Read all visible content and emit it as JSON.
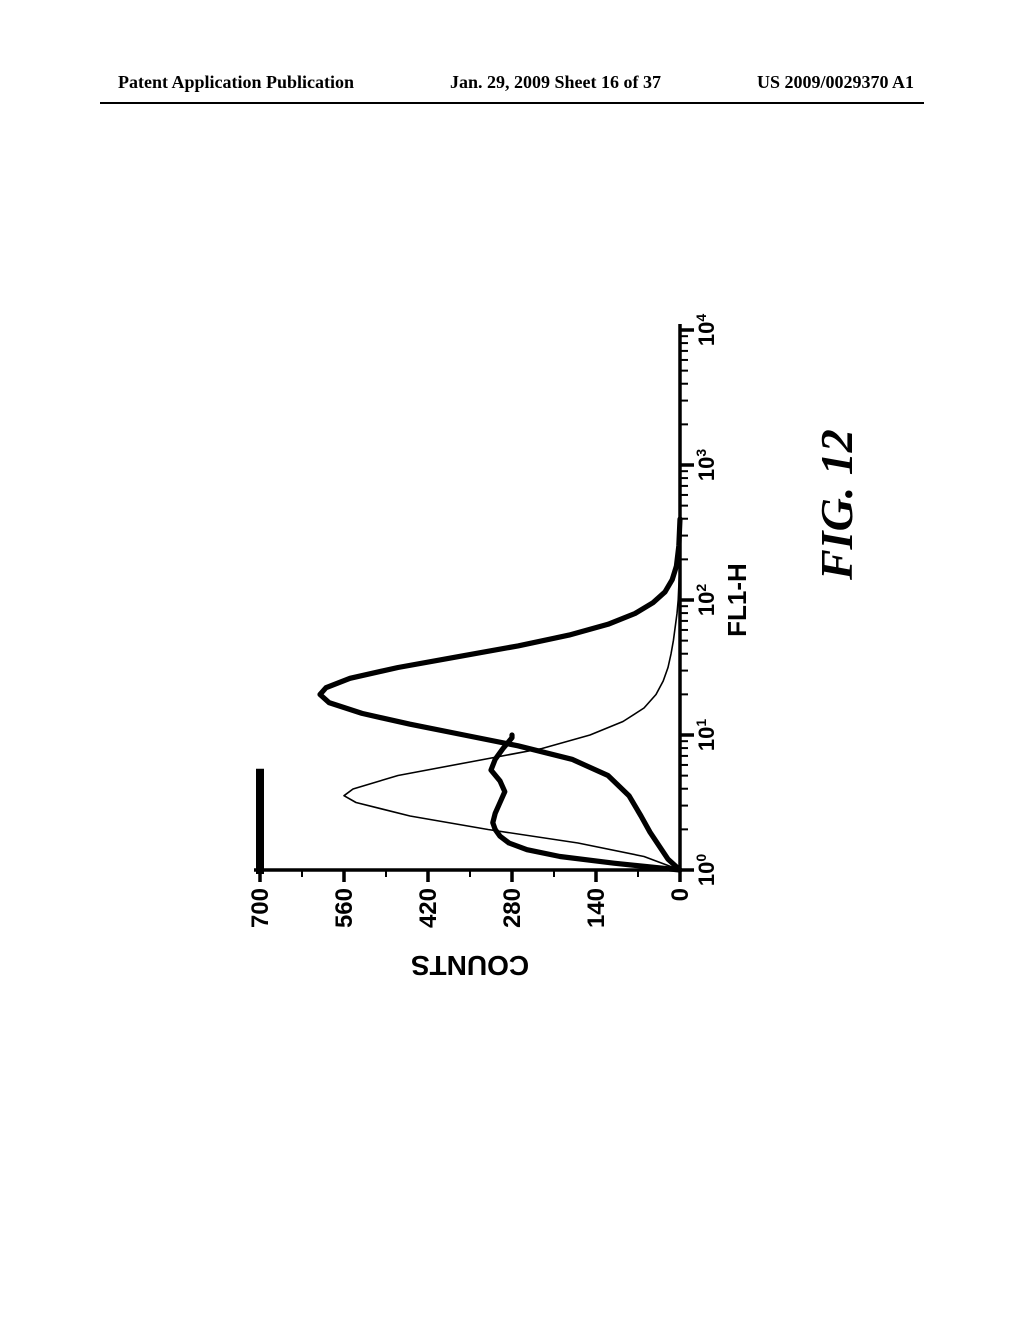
{
  "header": {
    "left": "Patent Application Publication",
    "center": "Jan. 29, 2009  Sheet 16 of 37",
    "right": "US 2009/0029370 A1"
  },
  "figure": {
    "label": "FIG.  12",
    "chart": {
      "type": "histogram-overlay",
      "orientation": "rotated-minus-90deg",
      "x_axis": {
        "label": "FL1-H",
        "scale": "log",
        "ticks": [
          "10^0",
          "10^1",
          "10^2",
          "10^3",
          "10^4"
        ],
        "label_fontsize": 26,
        "label_fontweight": "bold",
        "tick_fontsize": 22
      },
      "y_axis": {
        "label": "COUNTS",
        "scale": "linear",
        "ticks": [
          0,
          140,
          280,
          420,
          560,
          700
        ],
        "ylim": [
          0,
          700
        ],
        "label_fontsize": 28,
        "label_fontweight": "bold",
        "tick_fontsize": 24
      },
      "series": [
        {
          "name": "thin-curve",
          "stroke": "#000000",
          "stroke_width": 1.6,
          "approx_peak_x_decade": 0.55,
          "approx_peak_y": 560,
          "points": [
            [
              0.0,
              0
            ],
            [
              0.1,
              60
            ],
            [
              0.2,
              170
            ],
            [
              0.3,
              320
            ],
            [
              0.4,
              450
            ],
            [
              0.5,
              540
            ],
            [
              0.55,
              560
            ],
            [
              0.6,
              545
            ],
            [
              0.7,
              470
            ],
            [
              0.8,
              350
            ],
            [
              0.9,
              230
            ],
            [
              1.0,
              150
            ],
            [
              1.1,
              95
            ],
            [
              1.2,
              60
            ],
            [
              1.3,
              40
            ],
            [
              1.4,
              28
            ],
            [
              1.5,
              20
            ],
            [
              1.6,
              15
            ],
            [
              1.7,
              11
            ],
            [
              1.8,
              8
            ],
            [
              1.9,
              5
            ],
            [
              2.0,
              3
            ],
            [
              2.3,
              0
            ]
          ]
        },
        {
          "name": "thick-curve-left-hump-plus-plateau",
          "stroke": "#000000",
          "stroke_width": 5.2,
          "points": [
            [
              0.0,
              0
            ],
            [
              0.05,
              110
            ],
            [
              0.1,
              200
            ],
            [
              0.15,
              255
            ],
            [
              0.2,
              285
            ],
            [
              0.25,
              300
            ],
            [
              0.3,
              308
            ],
            [
              0.35,
              312
            ],
            [
              0.42,
              308
            ],
            [
              0.5,
              300
            ],
            [
              0.58,
              292
            ],
            [
              0.66,
              300
            ],
            [
              0.74,
              315
            ],
            [
              0.82,
              308
            ],
            [
              0.9,
              295
            ],
            [
              0.98,
              280
            ],
            [
              1.0,
              280
            ]
          ]
        },
        {
          "name": "thick-curve-main-peak",
          "stroke": "#000000",
          "stroke_width": 5.2,
          "approx_peak_x_decade": 1.3,
          "approx_peak_y": 600,
          "points": [
            [
              0.0,
              0
            ],
            [
              0.08,
              20
            ],
            [
              0.18,
              35
            ],
            [
              0.28,
              50
            ],
            [
              0.4,
              65
            ],
            [
              0.55,
              85
            ],
            [
              0.7,
              120
            ],
            [
              0.82,
              180
            ],
            [
              0.92,
              270
            ],
            [
              1.0,
              360
            ],
            [
              1.08,
              450
            ],
            [
              1.16,
              530
            ],
            [
              1.24,
              585
            ],
            [
              1.3,
              600
            ],
            [
              1.35,
              590
            ],
            [
              1.42,
              550
            ],
            [
              1.5,
              470
            ],
            [
              1.58,
              370
            ],
            [
              1.66,
              270
            ],
            [
              1.74,
              185
            ],
            [
              1.82,
              120
            ],
            [
              1.9,
              75
            ],
            [
              1.98,
              45
            ],
            [
              2.06,
              25
            ],
            [
              2.15,
              13
            ],
            [
              2.25,
              6
            ],
            [
              2.4,
              2
            ],
            [
              2.6,
              0
            ]
          ]
        }
      ],
      "plot_background": "#ffffff",
      "axis_color": "#000000",
      "axis_stroke_width": 3.5
    }
  }
}
